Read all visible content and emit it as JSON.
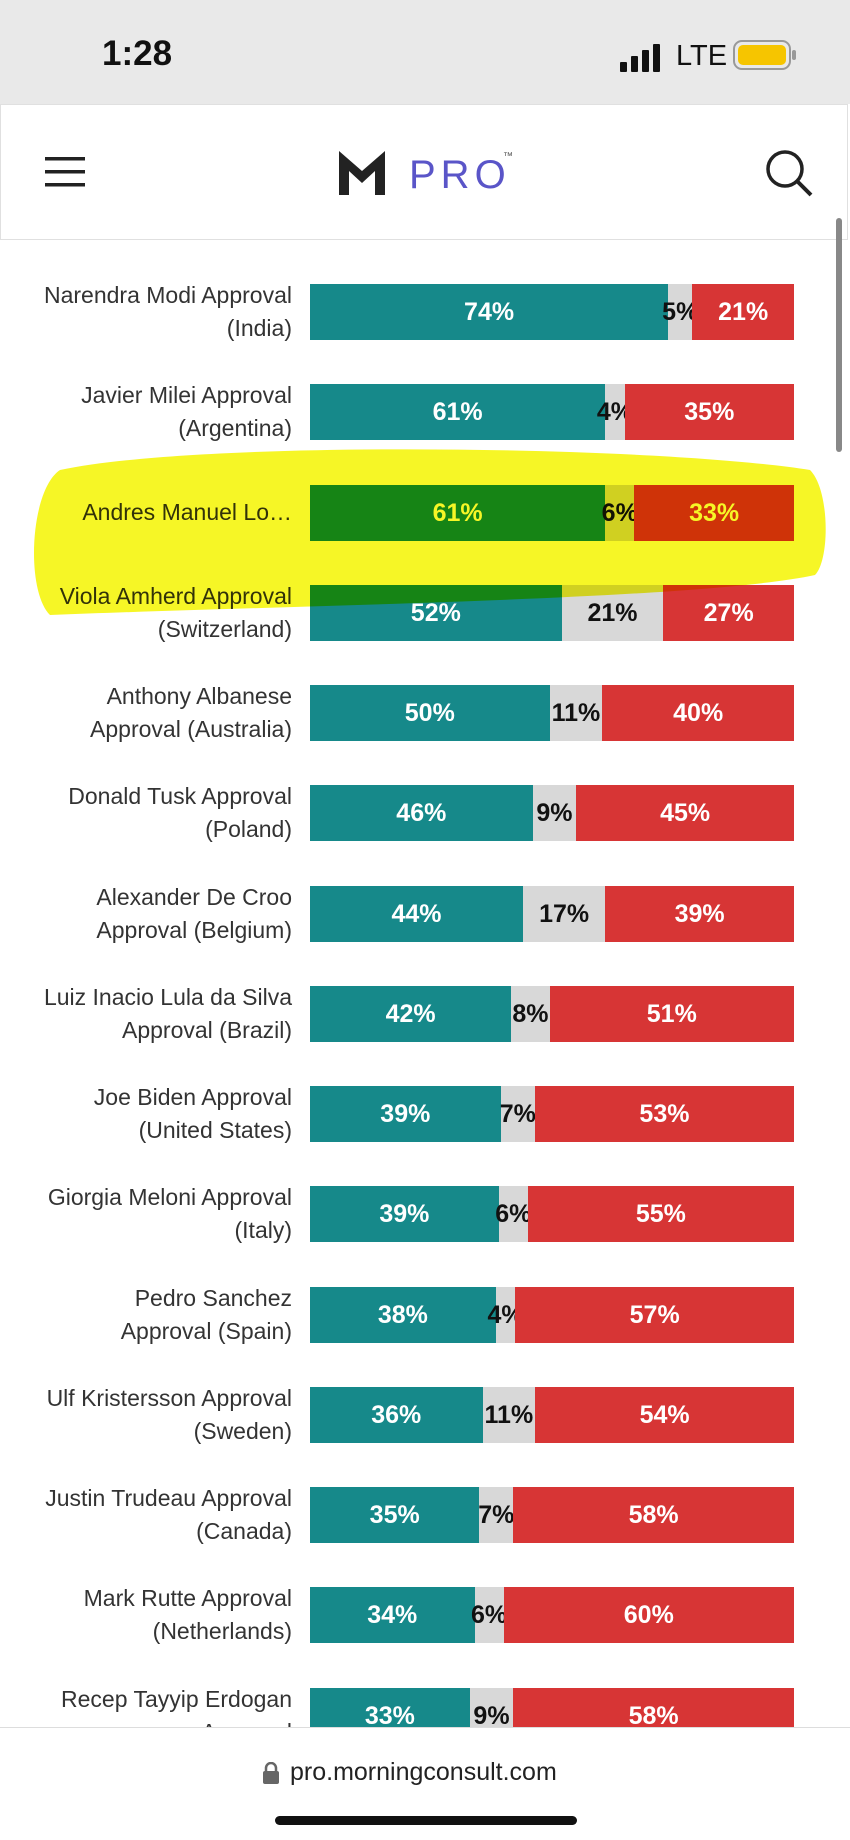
{
  "status_bar": {
    "time": "1:28",
    "network": "LTE"
  },
  "header": {
    "logo": "PRO",
    "trademark": "™"
  },
  "chart_data": {
    "type": "stacked-bar",
    "orientation": "horizontal",
    "categories": [
      "Narendra Modi Approval (India)",
      "Javier Milei Approval (Argentina)",
      "Andres Manuel Lo…",
      "Viola Amherd Approval (Switzerland)",
      "Anthony Albanese Approval (Australia)",
      "Donald Tusk Approval (Poland)",
      "Alexander De Croo Approval (Belgium)",
      "Luiz Inacio Lula da Silva Approval (Brazil)",
      "Joe Biden Approval (United States)",
      "Giorgia Meloni Approval (Italy)",
      "Pedro Sanchez Approval (Spain)",
      "Ulf Kristersson Approval (Sweden)",
      "Justin Trudeau Approval (Canada)",
      "Mark Rutte Approval (Netherlands)",
      "Recep Tayyip Erdogan Approval"
    ],
    "series": [
      {
        "color": "#16898a",
        "label_color": "#ffffff",
        "values": [
          74,
          61,
          61,
          52,
          50,
          46,
          44,
          42,
          39,
          39,
          38,
          36,
          35,
          34,
          33
        ],
        "value_labels": [
          "74%",
          "61%",
          "61%",
          "52%",
          "50%",
          "46%",
          "44%",
          "42%",
          "39%",
          "39%",
          "38%",
          "36%",
          "35%",
          "34%",
          "33%"
        ]
      },
      {
        "color": "#d8d8d8",
        "label_color": "#111111",
        "values": [
          5,
          4,
          6,
          21,
          11,
          9,
          17,
          8,
          7,
          6,
          4,
          11,
          7,
          6,
          9
        ],
        "value_labels": [
          "5%",
          "4%",
          "6%",
          "21%",
          "11%",
          "9%",
          "17%",
          "8%",
          "7%",
          "6%",
          "4%",
          "11%",
          "7%",
          "6%",
          "9%"
        ]
      },
      {
        "color": "#d73535",
        "label_color": "#ffffff",
        "values": [
          21,
          35,
          33,
          27,
          40,
          45,
          39,
          51,
          53,
          55,
          57,
          54,
          58,
          60,
          58
        ],
        "value_labels": [
          "21%",
          "35%",
          "33%",
          "27%",
          "40%",
          "45%",
          "39%",
          "51%",
          "53%",
          "55%",
          "57%",
          "54%",
          "58%",
          "60%",
          "58%"
        ]
      }
    ]
  },
  "footer": {
    "url": "pro.morningconsult.com"
  }
}
